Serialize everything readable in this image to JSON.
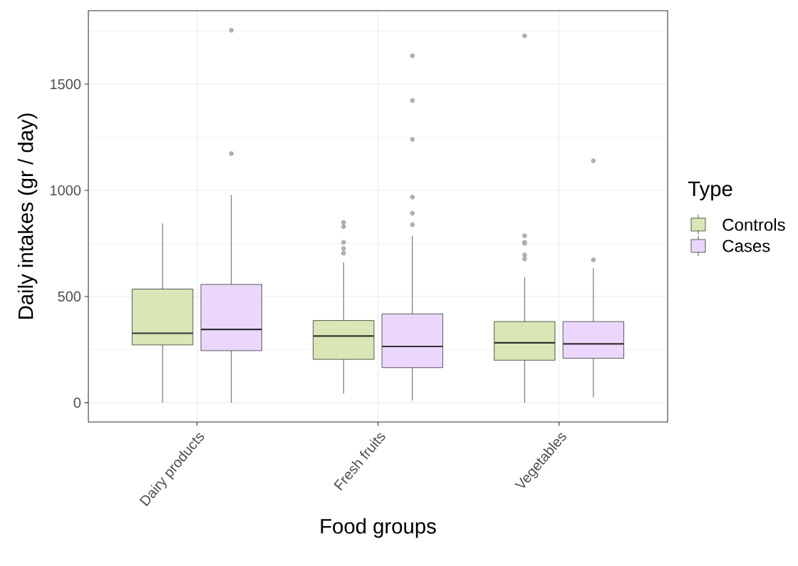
{
  "chart_data": {
    "type": "box",
    "xlabel": "Food groups",
    "ylabel": "Daily intakes (gr / day)",
    "legend_title": "Type",
    "legend": "right",
    "grid": true,
    "categories": [
      "Dairy products",
      "Fresh fruits",
      "Vegetables"
    ],
    "ylim": [
      -91,
      1846
    ],
    "yticks": [
      0,
      500,
      1000,
      1500
    ],
    "series": [
      {
        "name": "Controls",
        "color": "#d9e6b5",
        "boxes": [
          {
            "low": 0,
            "q1": 272,
            "median": 327,
            "q3": 535,
            "high": 844
          },
          {
            "low": 42,
            "q1": 204,
            "median": 314,
            "q3": 387,
            "high": 661,
            "outliers": [
              849,
              829,
              755,
              726,
              704
            ]
          },
          {
            "low": 0,
            "q1": 200,
            "median": 282,
            "q3": 382,
            "high": 590,
            "outliers": [
              1728,
              786,
              755,
              750,
              696,
              677
            ]
          }
        ]
      },
      {
        "name": "Cases",
        "color": "#ecd7fc",
        "boxes": [
          {
            "low": 0,
            "q1": 245,
            "median": 345,
            "q3": 557,
            "high": 978,
            "outliers": [
              1754,
              1173
            ]
          },
          {
            "low": 10,
            "q1": 165,
            "median": 265,
            "q3": 418,
            "high": 786,
            "outliers": [
              1634,
              1423,
              1240,
              968,
              892,
              838
            ]
          },
          {
            "low": 25,
            "q1": 209,
            "median": 277,
            "q3": 382,
            "high": 634,
            "outliers": [
              1139,
              673
            ]
          }
        ]
      }
    ]
  }
}
